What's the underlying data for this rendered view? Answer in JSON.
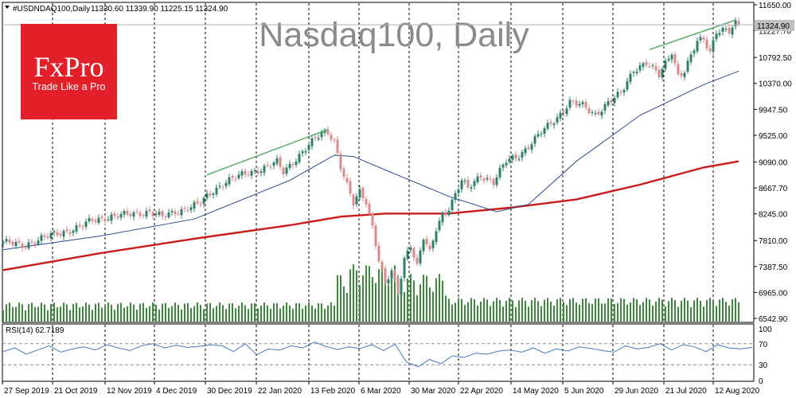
{
  "header": {
    "symbol": "#USDNDAQ100,Daily",
    "ohlc": "11330.60 11339.90 11225.15 11324.90"
  },
  "watermark": "Nasdaq100, Daily",
  "brand": {
    "logo": "FxPro",
    "tagline": "Trade Like a Pro",
    "color": "#e3202a"
  },
  "rsi_panel": {
    "label": "RSI(14) 62.7189"
  },
  "colors": {
    "bull": "#2f7f6a",
    "bear": "#d98a8a",
    "ma_fast": "#2e4a8c",
    "ma_slow": "#cc1a1a",
    "trendline": "#55aa66",
    "rsi": "#4a78c0",
    "volume": "#3a8a3a"
  },
  "chart_data": {
    "type": "candlestick",
    "title": "Nasdaq100, Daily",
    "price_axis_ticks": [
      11650.0,
      11227.7,
      10792.5,
      10370.0,
      9947.5,
      9525.0,
      9090.0,
      8667.7,
      8245.0,
      7810.0,
      7387.5,
      6965.0,
      6542.9
    ],
    "price_range": [
      6542.9,
      11650.0
    ],
    "current_price": 11324.9,
    "date_ticks": [
      "27 Sep 2019",
      "21 Oct 2019",
      "12 Nov 2019",
      "4 Dec 2019",
      "30 Dec 2019",
      "22 Jan 2020",
      "13 Feb 2020",
      "6 Mar 2020",
      "30 Mar 2020",
      "22 Apr 2020",
      "14 May 2020",
      "5 Jun 2020",
      "29 Jun 2020",
      "21 Jul 2020",
      "12 Aug 2020"
    ],
    "close_path": [
      [
        0,
        7790
      ],
      [
        6,
        7720
      ],
      [
        12,
        7850
      ],
      [
        18,
        7930
      ],
      [
        24,
        8040
      ],
      [
        28,
        8130
      ],
      [
        34,
        8210
      ],
      [
        40,
        8230
      ],
      [
        46,
        8290
      ],
      [
        50,
        8190
      ],
      [
        56,
        8310
      ],
      [
        62,
        8420
      ],
      [
        66,
        8620
      ],
      [
        70,
        8780
      ],
      [
        76,
        8890
      ],
      [
        80,
        8960
      ],
      [
        86,
        9080
      ],
      [
        88,
        8920
      ],
      [
        92,
        9150
      ],
      [
        96,
        9360
      ],
      [
        100,
        9550
      ],
      [
        102,
        9580
      ],
      [
        104,
        9440
      ],
      [
        106,
        9020
      ],
      [
        108,
        8700
      ],
      [
        110,
        8400
      ],
      [
        112,
        8600
      ],
      [
        114,
        8450
      ],
      [
        116,
        8050
      ],
      [
        118,
        7500
      ],
      [
        120,
        7100
      ],
      [
        122,
        7300
      ],
      [
        124,
        6950
      ],
      [
        126,
        7520
      ],
      [
        128,
        7750
      ],
      [
        130,
        7400
      ],
      [
        132,
        7850
      ],
      [
        134,
        7600
      ],
      [
        136,
        8000
      ],
      [
        138,
        8240
      ],
      [
        140,
        8350
      ],
      [
        144,
        8780
      ],
      [
        146,
        8650
      ],
      [
        150,
        8880
      ],
      [
        154,
        8760
      ],
      [
        158,
        9100
      ],
      [
        162,
        9200
      ],
      [
        166,
        9400
      ],
      [
        170,
        9620
      ],
      [
        174,
        9820
      ],
      [
        178,
        10060
      ],
      [
        182,
        10000
      ],
      [
        186,
        9870
      ],
      [
        190,
        10050
      ],
      [
        194,
        10200
      ],
      [
        198,
        10600
      ],
      [
        202,
        10700
      ],
      [
        206,
        10500
      ],
      [
        208,
        10700
      ],
      [
        210,
        10900
      ],
      [
        212,
        10500
      ],
      [
        214,
        10560
      ],
      [
        216,
        10800
      ],
      [
        218,
        11050
      ],
      [
        220,
        11100
      ],
      [
        222,
        10900
      ],
      [
        224,
        11220
      ],
      [
        226,
        11230
      ],
      [
        228,
        11200
      ],
      [
        230,
        11340
      ],
      [
        231,
        11325
      ]
    ],
    "ma_slow_path": [
      [
        0,
        7330
      ],
      [
        30,
        7600
      ],
      [
        60,
        7840
      ],
      [
        90,
        8060
      ],
      [
        106,
        8200
      ],
      [
        120,
        8250
      ],
      [
        140,
        8250
      ],
      [
        160,
        8350
      ],
      [
        180,
        8480
      ],
      [
        200,
        8720
      ],
      [
        220,
        9000
      ],
      [
        231,
        9100
      ]
    ],
    "ma_fast_path": [
      [
        0,
        7660
      ],
      [
        30,
        7880
      ],
      [
        60,
        8160
      ],
      [
        90,
        8790
      ],
      [
        104,
        9200
      ],
      [
        110,
        9180
      ],
      [
        120,
        8960
      ],
      [
        140,
        8530
      ],
      [
        155,
        8280
      ],
      [
        165,
        8400
      ],
      [
        180,
        9100
      ],
      [
        200,
        9850
      ],
      [
        220,
        10350
      ],
      [
        231,
        10570
      ]
    ],
    "trendlines": [
      [
        [
          64,
          8880
        ],
        [
          102,
          9620
        ]
      ],
      [
        [
          203,
          10920
        ],
        [
          230,
          11400
        ]
      ]
    ],
    "rsi": {
      "levels": [
        100,
        70,
        30,
        0
      ],
      "dashed_levels": [
        70,
        30
      ],
      "values": [
        55,
        62,
        50,
        58,
        66,
        54,
        60,
        64,
        58,
        68,
        62,
        57,
        66,
        70,
        62,
        67,
        63,
        65,
        68,
        66,
        55,
        70,
        49,
        60,
        58,
        66,
        62,
        73,
        65,
        59,
        64,
        61,
        68,
        57,
        69,
        35,
        26,
        40,
        32,
        47,
        44,
        52,
        50,
        56,
        58,
        54,
        62,
        52,
        60,
        56,
        64,
        61,
        57,
        54,
        66,
        60,
        63,
        70,
        58,
        68,
        64,
        55,
        68,
        62,
        60,
        63
      ]
    }
  }
}
